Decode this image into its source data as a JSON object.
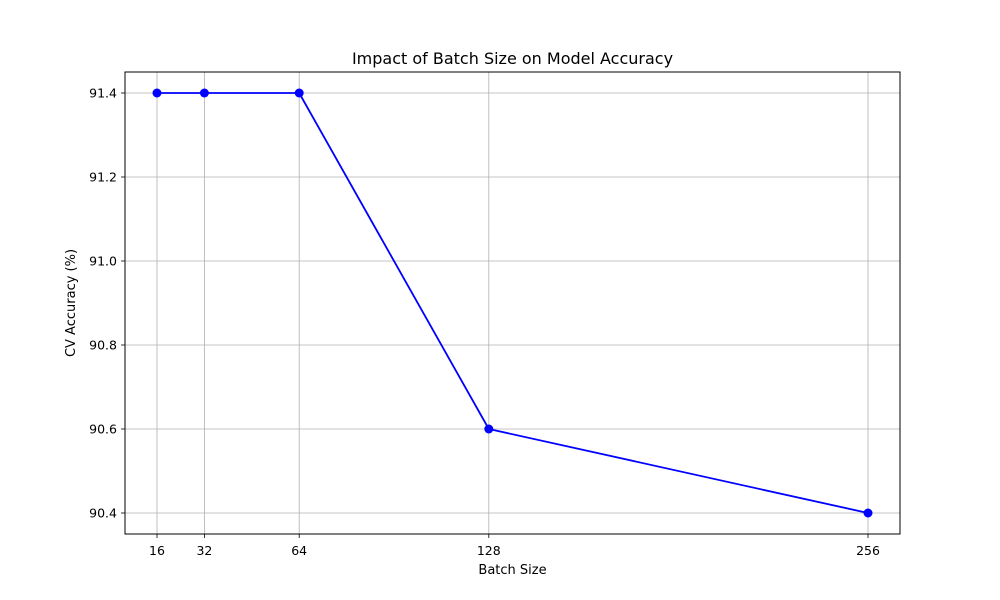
{
  "chart_data": {
    "type": "line",
    "title": "Impact of Batch Size on Model Accuracy",
    "xlabel": "Batch Size",
    "ylabel": "CV Accuracy (%)",
    "x": [
      16,
      32,
      64,
      128,
      256
    ],
    "x_tick_labels": [
      "16",
      "32",
      "64",
      "128",
      "256"
    ],
    "y_ticks": [
      90.4,
      90.6,
      90.8,
      91.0,
      91.2,
      91.4
    ],
    "y_tick_labels": [
      "90.4",
      "90.6",
      "90.8",
      "91.0",
      "91.2",
      "91.4"
    ],
    "xlim": [
      5.2,
      266.8
    ],
    "ylim": [
      90.35,
      91.45
    ],
    "grid": true,
    "series": [
      {
        "values": [
          91.4,
          91.4,
          91.4,
          90.6,
          90.4
        ],
        "color": "#0000ff",
        "marker": "circle"
      }
    ]
  }
}
